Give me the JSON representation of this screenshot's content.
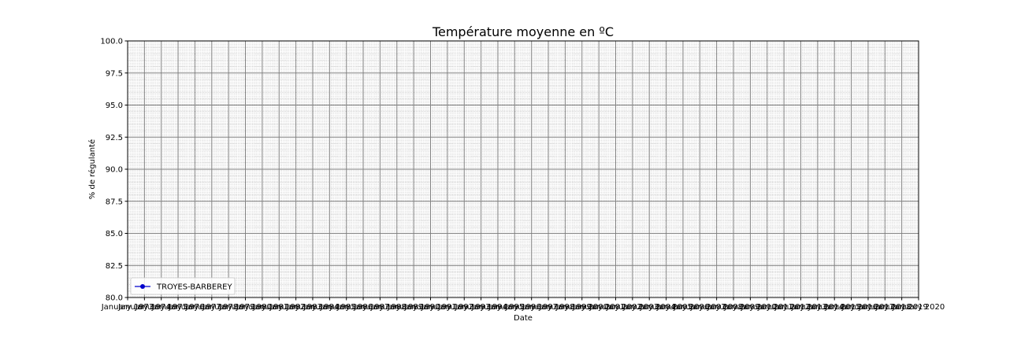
{
  "chart_data": {
    "type": "line",
    "title": "Température moyenne en ºC",
    "xlabel": "Date",
    "ylabel": "% de régulanté",
    "x_range": [
      "1973-01-01",
      "2020-01-01"
    ],
    "ylim": [
      80.0,
      100.0
    ],
    "y_ticks": [
      "80.0",
      "82.5",
      "85.0",
      "87.5",
      "90.0",
      "92.5",
      "95.0",
      "97.5",
      "100.0"
    ],
    "x_tick_labels": [
      "January 1973",
      "January 1974",
      "January 1975",
      "January 1976",
      "January 1977",
      "January 1978",
      "January 1979",
      "January 1980",
      "January 1981",
      "January 1982",
      "January 1983",
      "January 1984",
      "January 1985",
      "January 1986",
      "January 1987",
      "January 1988",
      "January 1989",
      "January 1990",
      "January 1991",
      "January 1992",
      "January 1993",
      "January 1994",
      "January 1995",
      "January 1996",
      "January 1997",
      "January 1998",
      "January 1999",
      "January 2000",
      "January 2001",
      "January 2002",
      "January 2003",
      "January 2004",
      "January 2005",
      "January 2006",
      "January 2007",
      "January 2008",
      "January 2009",
      "January 2010",
      "January 2011",
      "January 2012",
      "January 2013",
      "January 2014",
      "January 2015",
      "January 2016",
      "January 2017",
      "January 2018",
      "January 2019",
      "January 2020"
    ],
    "grid": true,
    "minor_grid": true,
    "legend_position": "lower-left",
    "series": [
      {
        "name": "TROYES-BARBEREY",
        "color": "#0000cc",
        "marker": "circle",
        "values": []
      }
    ]
  }
}
